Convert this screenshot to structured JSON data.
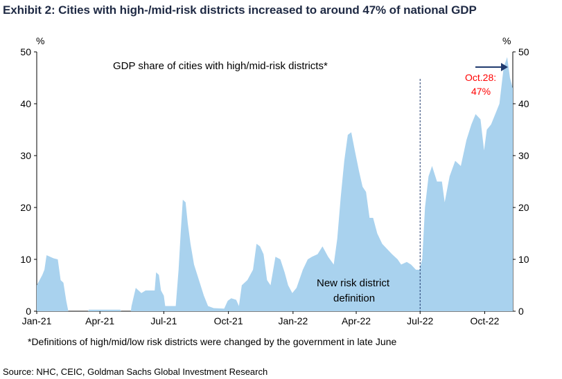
{
  "header": {
    "title": "Exhibit 2: Cities with high-/mid-risk districts increased to around 47% of national GDP"
  },
  "footer": {
    "footnote": "*Definitions of high/mid/low risk districts were changed by the government in late June",
    "source": "Source: NHC, CEIC, Goldman Sachs Global Investment Research"
  },
  "chart_data": {
    "type": "area",
    "title": "",
    "series_label": "GDP share of cities with high/mid-risk districts*",
    "y_unit_left": "%",
    "y_unit_right": "%",
    "ylim": [
      0,
      50
    ],
    "y_ticks": [
      0,
      10,
      20,
      30,
      40,
      50
    ],
    "x_tick_labels": [
      "Jan-21",
      "Apr-21",
      "Jul-21",
      "Oct-21",
      "Jan-22",
      "Apr-22",
      "Jul-22",
      "Oct-22"
    ],
    "x_range": [
      "2021-01-01",
      "2022-11-10"
    ],
    "color": "#a9d2ee",
    "grid": false,
    "annotations": {
      "definition_change": {
        "date": "2022-07-01",
        "label_line1": "New risk district",
        "label_line2": "definition"
      },
      "latest": {
        "label_line1": "Oct.28:",
        "label_line2": "47%",
        "value": 47,
        "color": "#ff0000"
      }
    },
    "series": [
      {
        "name": "GDP share of cities with high/mid-risk districts*",
        "points": [
          [
            "2021-01-01",
            5
          ],
          [
            "2021-01-05",
            6
          ],
          [
            "2021-01-09",
            7
          ],
          [
            "2021-01-12",
            8
          ],
          [
            "2021-01-15",
            10.8
          ],
          [
            "2021-01-20",
            10.5
          ],
          [
            "2021-01-25",
            10.2
          ],
          [
            "2021-01-31",
            10
          ],
          [
            "2021-02-04",
            6
          ],
          [
            "2021-02-08",
            5.5
          ],
          [
            "2021-02-12",
            2
          ],
          [
            "2021-02-15",
            0
          ],
          [
            "2021-03-15",
            0
          ],
          [
            "2021-03-16",
            0.3
          ],
          [
            "2021-04-30",
            0.3
          ],
          [
            "2021-05-01",
            0
          ],
          [
            "2021-05-15",
            0
          ],
          [
            "2021-05-16",
            1
          ],
          [
            "2021-05-22",
            4.5
          ],
          [
            "2021-05-30",
            3.5
          ],
          [
            "2021-06-05",
            4
          ],
          [
            "2021-06-18",
            4
          ],
          [
            "2021-06-20",
            7.5
          ],
          [
            "2021-06-24",
            7
          ],
          [
            "2021-06-27",
            4
          ],
          [
            "2021-07-01",
            3
          ],
          [
            "2021-07-03",
            1
          ],
          [
            "2021-07-18",
            1
          ],
          [
            "2021-07-22",
            8
          ],
          [
            "2021-07-25",
            15
          ],
          [
            "2021-07-28",
            21.5
          ],
          [
            "2021-08-01",
            21
          ],
          [
            "2021-08-04",
            17
          ],
          [
            "2021-08-08",
            13
          ],
          [
            "2021-08-13",
            9
          ],
          [
            "2021-08-20",
            6
          ],
          [
            "2021-08-27",
            3
          ],
          [
            "2021-09-02",
            1
          ],
          [
            "2021-09-10",
            0.6
          ],
          [
            "2021-09-25",
            0.5
          ],
          [
            "2021-09-30",
            2
          ],
          [
            "2021-10-05",
            2.5
          ],
          [
            "2021-10-12",
            2.2
          ],
          [
            "2021-10-16",
            1
          ],
          [
            "2021-10-20",
            5
          ],
          [
            "2021-10-28",
            6
          ],
          [
            "2021-11-05",
            8
          ],
          [
            "2021-11-10",
            13
          ],
          [
            "2021-11-15",
            12.5
          ],
          [
            "2021-11-20",
            11
          ],
          [
            "2021-11-25",
            6
          ],
          [
            "2021-11-30",
            5
          ],
          [
            "2021-12-07",
            10.5
          ],
          [
            "2021-12-14",
            10
          ],
          [
            "2021-12-20",
            7.5
          ],
          [
            "2021-12-25",
            5
          ],
          [
            "2021-12-31",
            3.5
          ],
          [
            "2022-01-06",
            4.5
          ],
          [
            "2022-01-15",
            8
          ],
          [
            "2022-01-22",
            10
          ],
          [
            "2022-01-28",
            10.5
          ],
          [
            "2022-02-05",
            11
          ],
          [
            "2022-02-12",
            12.5
          ],
          [
            "2022-02-20",
            10.5
          ],
          [
            "2022-02-28",
            9
          ],
          [
            "2022-03-05",
            14
          ],
          [
            "2022-03-10",
            22
          ],
          [
            "2022-03-15",
            29
          ],
          [
            "2022-03-20",
            34
          ],
          [
            "2022-03-25",
            34.5
          ],
          [
            "2022-03-30",
            31
          ],
          [
            "2022-04-05",
            27
          ],
          [
            "2022-04-10",
            24
          ],
          [
            "2022-04-15",
            23
          ],
          [
            "2022-04-20",
            18
          ],
          [
            "2022-04-25",
            18
          ],
          [
            "2022-05-01",
            15
          ],
          [
            "2022-05-08",
            13
          ],
          [
            "2022-05-15",
            12
          ],
          [
            "2022-05-22",
            11
          ],
          [
            "2022-05-30",
            10
          ],
          [
            "2022-06-04",
            9
          ],
          [
            "2022-06-12",
            9.5
          ],
          [
            "2022-06-18",
            9
          ],
          [
            "2022-06-25",
            8
          ],
          [
            "2022-06-30",
            8
          ],
          [
            "2022-07-04",
            10
          ],
          [
            "2022-07-08",
            20
          ],
          [
            "2022-07-13",
            26
          ],
          [
            "2022-07-18",
            28
          ],
          [
            "2022-07-25",
            25
          ],
          [
            "2022-08-01",
            25
          ],
          [
            "2022-08-05",
            21
          ],
          [
            "2022-08-12",
            26
          ],
          [
            "2022-08-20",
            29
          ],
          [
            "2022-08-28",
            28
          ],
          [
            "2022-09-05",
            33
          ],
          [
            "2022-09-12",
            36
          ],
          [
            "2022-09-18",
            38
          ],
          [
            "2022-09-25",
            37
          ],
          [
            "2022-09-30",
            31
          ],
          [
            "2022-10-04",
            35
          ],
          [
            "2022-10-10",
            36
          ],
          [
            "2022-10-16",
            38
          ],
          [
            "2022-10-22",
            40
          ],
          [
            "2022-10-28",
            47
          ],
          [
            "2022-11-02",
            49
          ],
          [
            "2022-11-06",
            45
          ],
          [
            "2022-11-10",
            43
          ]
        ]
      }
    ]
  }
}
